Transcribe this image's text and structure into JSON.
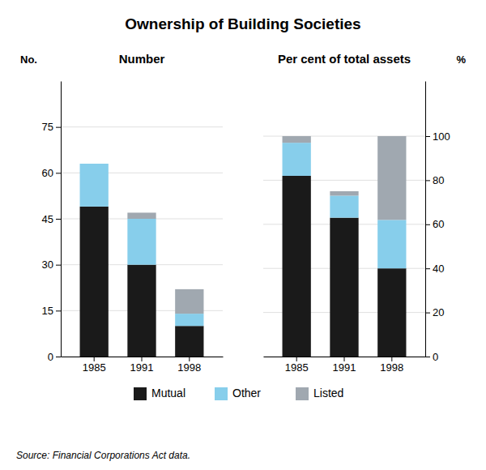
{
  "title": "Ownership of Building Societies",
  "annotations": [
    "Source: Financial Corporations Act data."
  ],
  "chart_data": [
    {
      "type": "bar",
      "title": "Number",
      "ylabel": "No.",
      "stacked": true,
      "grid": true,
      "legend": "bottom",
      "categories": [
        "1985",
        "1991",
        "1998"
      ],
      "series": [
        {
          "name": "Mutual",
          "color": "#1a1a1a",
          "values": [
            49,
            30,
            10
          ]
        },
        {
          "name": "Other",
          "color": "#87ceeb",
          "values": [
            14,
            15,
            4
          ]
        },
        {
          "name": "Listed",
          "color": "#a0a8b0",
          "values": [
            0,
            2,
            8
          ]
        }
      ],
      "ylim": [
        0,
        90
      ],
      "yticks": [
        0,
        15,
        30,
        45,
        60,
        75
      ]
    },
    {
      "type": "bar",
      "title": "Per cent of total assets",
      "ylabel": "%",
      "stacked": true,
      "grid": true,
      "categories": [
        "1985",
        "1991",
        "1998"
      ],
      "series": [
        {
          "name": "Mutual",
          "color": "#1a1a1a",
          "values": [
            82,
            63,
            40
          ]
        },
        {
          "name": "Other",
          "color": "#87ceeb",
          "values": [
            15,
            10,
            22
          ]
        },
        {
          "name": "Listed",
          "color": "#a0a8b0",
          "values": [
            3,
            2,
            38
          ]
        }
      ],
      "ylim": [
        0,
        125
      ],
      "yticks": [
        0,
        20,
        40,
        60,
        80,
        100
      ]
    }
  ]
}
